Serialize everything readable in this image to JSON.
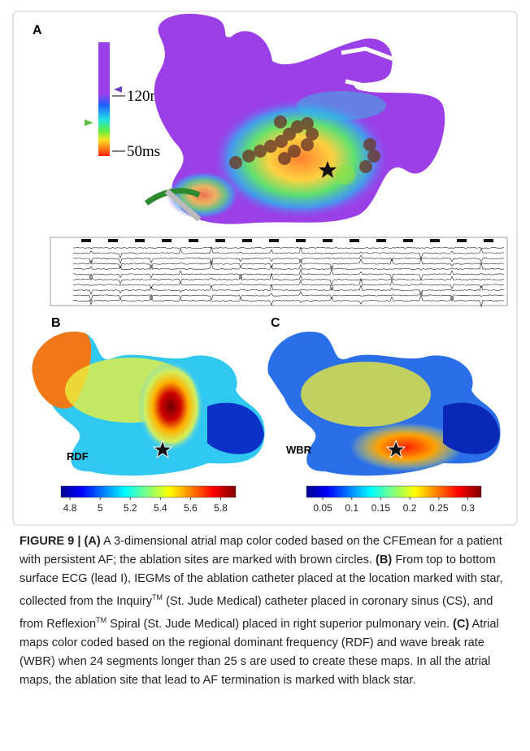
{
  "panel_a": {
    "label": "A",
    "scale_labels": [
      "120ms",
      "50ms"
    ]
  },
  "panel_b": {
    "label": "B",
    "map_label": "RDF",
    "colorbar": {
      "lim": [
        4.74,
        5.9
      ],
      "ticks": [
        4.8,
        5,
        5.2,
        5.4,
        5.6,
        5.8
      ]
    }
  },
  "panel_c": {
    "label": "C",
    "map_label": "WBR",
    "colorbar": {
      "lim": [
        0.022,
        0.323
      ],
      "ticks": [
        0.05,
        0.1,
        0.15,
        0.2,
        0.25,
        0.3
      ]
    }
  },
  "caption": [
    {
      "text": "FIGURE 9 | (A)",
      "style": "bold"
    },
    {
      "text": " A 3-dimensional atrial map color coded based on the CFEmean for a patient with persistent AF; the ablation sites are marked with brown circles. ",
      "style": "normal"
    },
    {
      "text": "(B)",
      "style": "bold"
    },
    {
      "text": " From top to bottom surface ECG (lead I), IEGMs of the ablation catheter placed at the location marked with star, collected from the Inquiry",
      "style": "normal"
    },
    {
      "text": "TM",
      "style": "sup"
    },
    {
      "text": " (St. Jude Medical) catheter placed in coronary sinus (CS), and from Reflexion",
      "style": "normal"
    },
    {
      "text": "TM",
      "style": "sup"
    },
    {
      "text": " Spiral (St. Jude Medical) placed in right superior pulmonary vein. ",
      "style": "normal"
    },
    {
      "text": "(C)",
      "style": "bold"
    },
    {
      "text": " Atrial maps color coded based on the regional dominant frequency (RDF) and wave break rate (WBR) when 24 segments longer than 25 s are used to create these maps. In all the atrial maps, the ablation site that lead to AF termination is marked with black star.",
      "style": "normal"
    }
  ]
}
